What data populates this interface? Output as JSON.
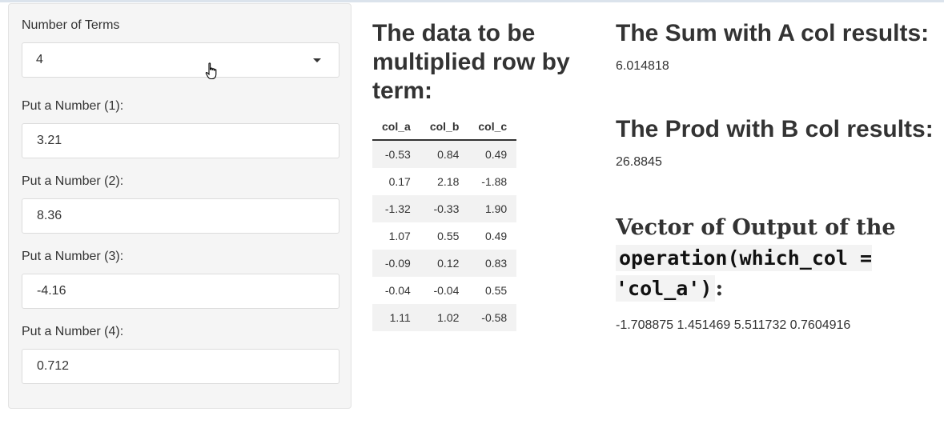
{
  "sidebar": {
    "terms_label": "Number of Terms",
    "terms_value": "4",
    "inputs": [
      {
        "label": "Put a Number (1):",
        "value": "3.21"
      },
      {
        "label": "Put a Number (2):",
        "value": "8.36"
      },
      {
        "label": "Put a Number (3):",
        "value": "-4.16"
      },
      {
        "label": "Put a Number (4):",
        "value": "0.712"
      }
    ]
  },
  "middle": {
    "heading": "The data to be multiplied row by term:",
    "table": {
      "headers": [
        "col_a",
        "col_b",
        "col_c"
      ],
      "rows": [
        [
          "-0.53",
          "0.84",
          "0.49"
        ],
        [
          "0.17",
          "2.18",
          "-1.88"
        ],
        [
          "-1.32",
          "-0.33",
          "1.90"
        ],
        [
          "1.07",
          "0.55",
          "0.49"
        ],
        [
          "-0.09",
          "0.12",
          "0.83"
        ],
        [
          "-0.04",
          "-0.04",
          "0.55"
        ],
        [
          "1.11",
          "1.02",
          "-0.58"
        ]
      ]
    }
  },
  "right": {
    "sum_heading": "The Sum with A col results:",
    "sum_value": "6.014818",
    "prod_heading": "The Prod with B col results:",
    "prod_value": "26.8845",
    "vector_heading_prefix": "Vector of Output of the",
    "vector_heading_code": "operation(which_col = 'col_a')",
    "vector_heading_suffix": ":",
    "vector_value": "-1.708875 1.451469 5.511732 0.7604916"
  }
}
